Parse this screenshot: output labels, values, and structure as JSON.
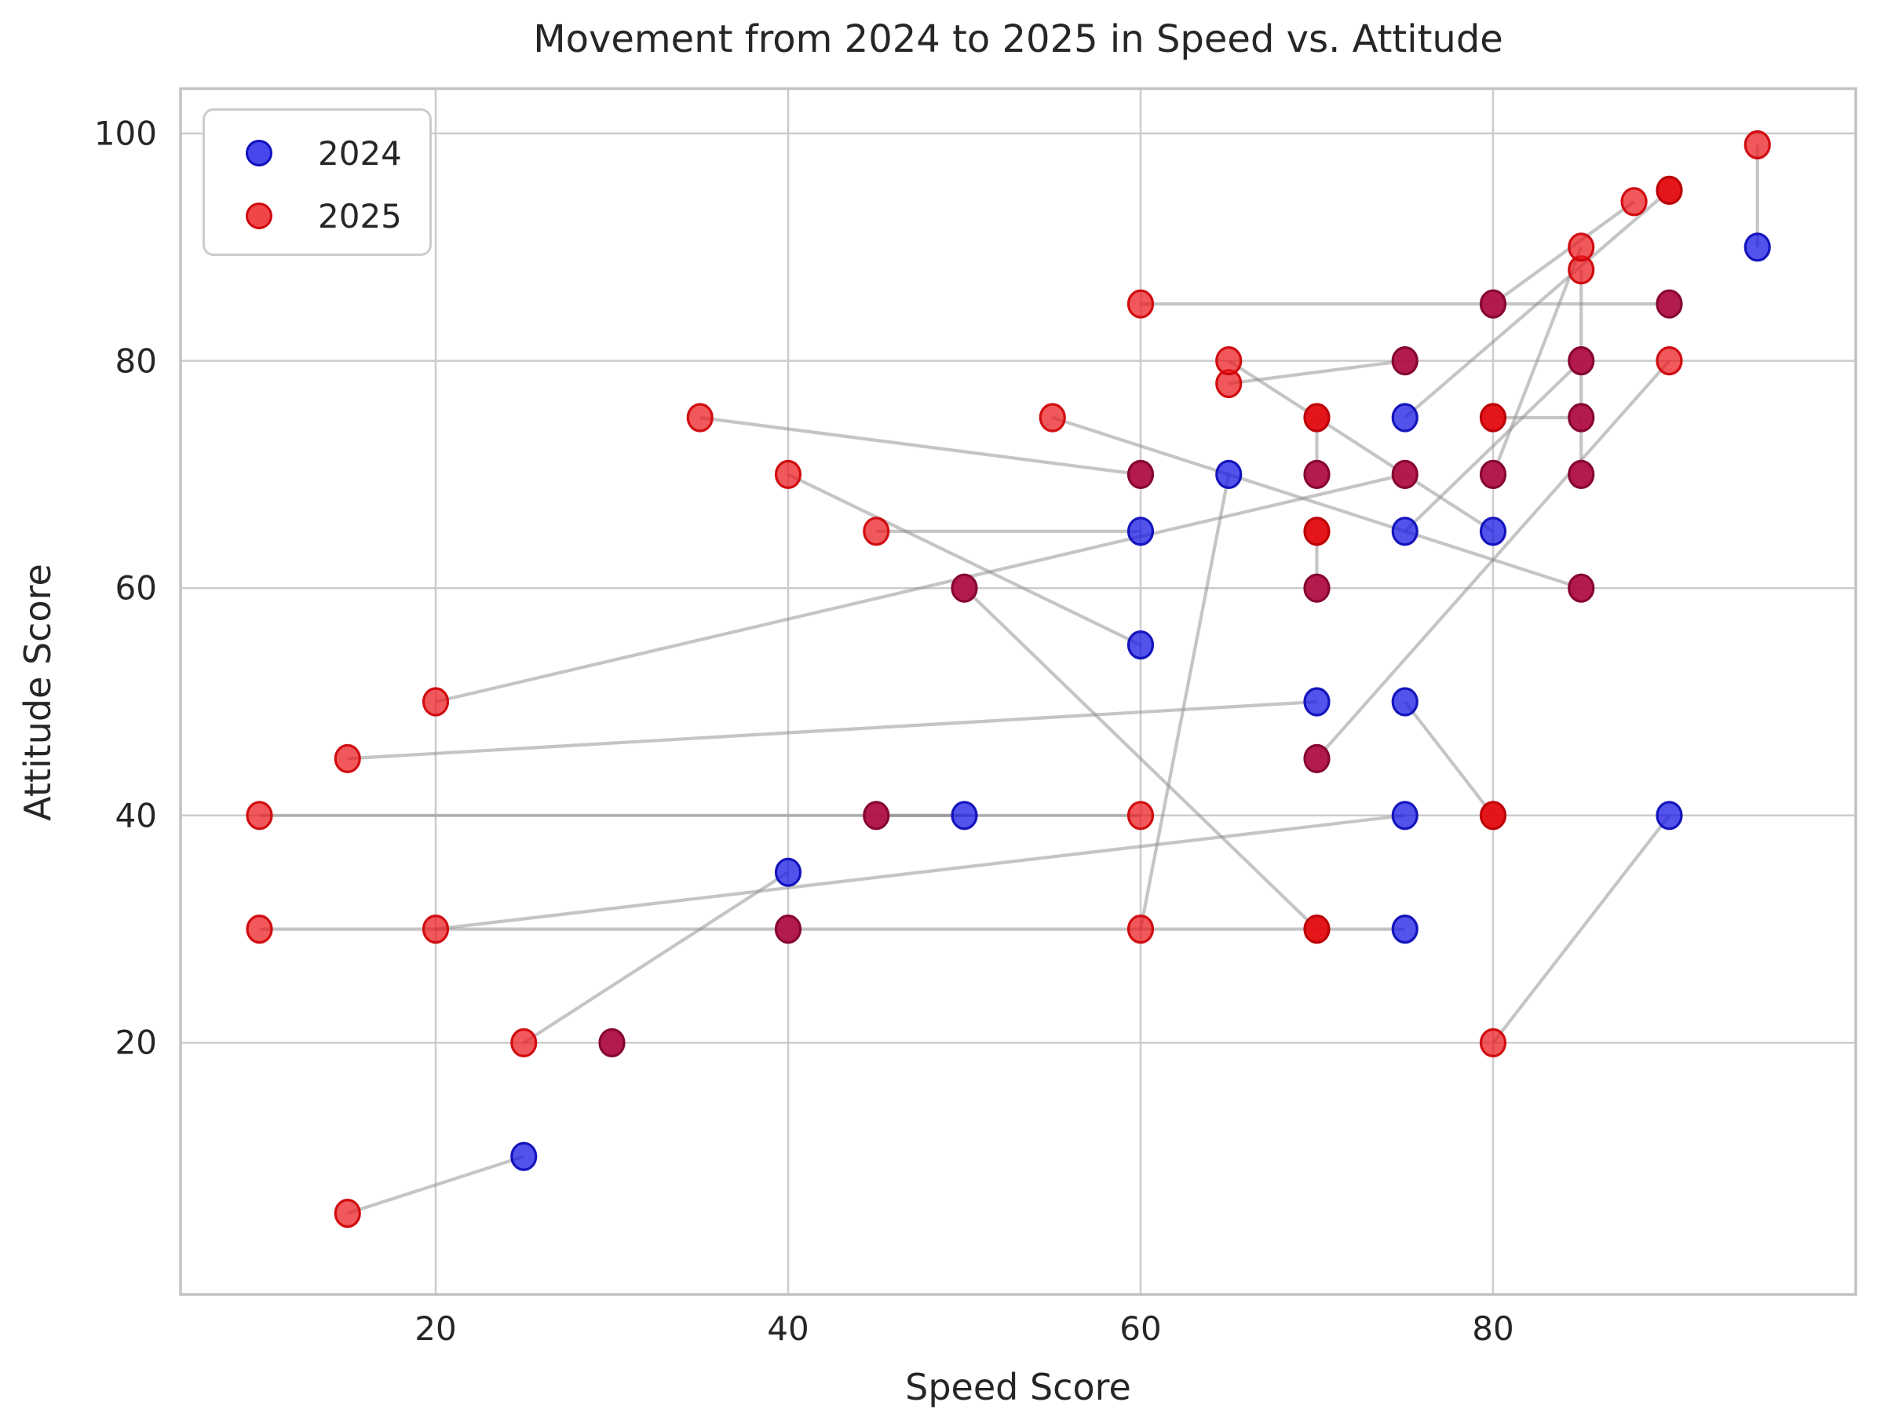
{
  "title": "Movement from 2024 to 2025 in Speed vs. Attitude",
  "axes": {
    "xlabel": "Speed Score",
    "ylabel": "Attitude Score",
    "x_ticks": [
      20,
      40,
      60,
      80
    ],
    "y_ticks": [
      20,
      40,
      60,
      80,
      100
    ]
  },
  "legend": {
    "items": [
      {
        "label": "2024",
        "color_name": "blue",
        "color": "#2121e6"
      },
      {
        "label": "2025",
        "color_name": "red",
        "color": "#ee1a1d"
      }
    ]
  },
  "colors": {
    "blue_fill": "rgba(25,25,230,0.75)",
    "blue_edge": "rgba(13,13,185,0.95)",
    "red_fill": "rgba(236,24,28,0.72)",
    "red_edge": "rgba(205,5,10,0.95)",
    "red_bold_fill": "rgba(228,12,18,0.96)",
    "red_bold_edge": "rgba(188,0,5,1)",
    "overlap_fill": "rgba(177,18,70,0.96)",
    "overlap_edge": "rgba(134,6,48,1)",
    "line": "rgba(140,140,140,0.5)",
    "grid": "#cccccc",
    "border": "#c3c3c3",
    "text": "#262626"
  },
  "chart_data": {
    "type": "scatter",
    "title": "Movement from 2024 to 2025 in Speed vs. Attitude",
    "xlabel": "Speed Score",
    "ylabel": "Attitude Score",
    "x_ticks": [
      20,
      40,
      60,
      80
    ],
    "y_ticks": [
      20,
      40,
      60,
      80,
      100
    ],
    "xlim": [
      5.4,
      100.9
    ],
    "ylim": [
      -2.1,
      103.9
    ],
    "grid": true,
    "legend_position": "upper left",
    "series_labels": [
      "2024",
      "2025"
    ],
    "movements_2024_to_2025": [
      [
        95,
        90,
        95,
        99
      ],
      [
        25,
        10,
        15,
        5
      ],
      [
        40,
        35,
        25,
        20
      ],
      [
        90,
        40,
        80,
        20
      ],
      [
        65,
        70,
        60,
        30
      ],
      [
        75,
        50,
        80,
        40
      ],
      [
        70,
        50,
        15,
        45
      ],
      [
        75,
        70,
        20,
        50
      ],
      [
        75,
        40,
        20,
        30
      ],
      [
        75,
        30,
        10,
        30
      ],
      [
        50,
        40,
        10,
        40
      ],
      [
        85,
        60,
        55,
        75
      ],
      [
        75,
        65,
        85,
        80
      ],
      [
        60,
        55,
        40,
        70
      ],
      [
        60,
        65,
        45,
        65
      ],
      [
        90,
        85,
        60,
        85
      ],
      [
        75,
        80,
        65,
        78
      ],
      [
        80,
        65,
        65,
        80
      ],
      [
        75,
        75,
        90,
        95
      ],
      [
        80,
        85,
        88,
        94
      ],
      [
        60,
        70,
        35,
        75
      ],
      [
        70,
        70,
        70,
        75
      ],
      [
        70,
        60,
        70,
        65
      ],
      [
        50,
        60,
        70,
        30
      ],
      [
        45,
        40,
        60,
        40
      ],
      [
        70,
        45,
        90,
        80
      ],
      [
        85,
        70,
        85,
        88
      ],
      [
        80,
        70,
        85,
        90
      ],
      [
        85,
        75,
        80,
        75
      ],
      [
        30,
        20,
        30,
        20
      ],
      [
        40,
        30,
        40,
        30
      ]
    ],
    "points_2024_visible": [
      [
        25,
        10
      ],
      [
        40,
        35
      ],
      [
        50,
        40
      ],
      [
        60,
        55
      ],
      [
        60,
        65
      ],
      [
        65,
        70
      ],
      [
        70,
        50
      ],
      [
        75,
        30
      ],
      [
        75,
        40
      ],
      [
        75,
        50
      ],
      [
        75,
        65
      ],
      [
        75,
        75
      ],
      [
        80,
        65
      ],
      [
        90,
        40
      ],
      [
        95,
        90
      ]
    ],
    "points_overlap_2024_2025": [
      [
        30,
        20
      ],
      [
        40,
        30
      ],
      [
        45,
        40
      ],
      [
        50,
        60
      ],
      [
        60,
        70
      ],
      [
        70,
        45
      ],
      [
        70,
        60
      ],
      [
        70,
        70
      ],
      [
        75,
        70
      ],
      [
        75,
        80
      ],
      [
        80,
        70
      ],
      [
        80,
        85
      ],
      [
        85,
        60
      ],
      [
        85,
        70
      ],
      [
        85,
        75
      ],
      [
        85,
        80
      ],
      [
        90,
        85
      ]
    ],
    "points_2025_visible": [
      [
        10,
        30
      ],
      [
        10,
        40
      ],
      [
        15,
        5
      ],
      [
        15,
        45
      ],
      [
        20,
        30
      ],
      [
        20,
        50
      ],
      [
        25,
        20
      ],
      [
        35,
        75
      ],
      [
        40,
        70
      ],
      [
        45,
        65
      ],
      [
        55,
        75
      ],
      [
        60,
        30
      ],
      [
        60,
        40
      ],
      [
        60,
        85
      ],
      [
        65,
        78
      ],
      [
        65,
        80
      ],
      [
        80,
        20
      ],
      [
        85,
        88
      ],
      [
        85,
        90
      ],
      [
        88,
        94
      ],
      [
        90,
        80
      ],
      [
        95,
        99
      ]
    ],
    "points_2025_bold": [
      [
        70,
        30
      ],
      [
        70,
        65
      ],
      [
        70,
        75
      ],
      [
        80,
        40
      ],
      [
        80,
        75
      ],
      [
        90,
        95
      ]
    ]
  }
}
